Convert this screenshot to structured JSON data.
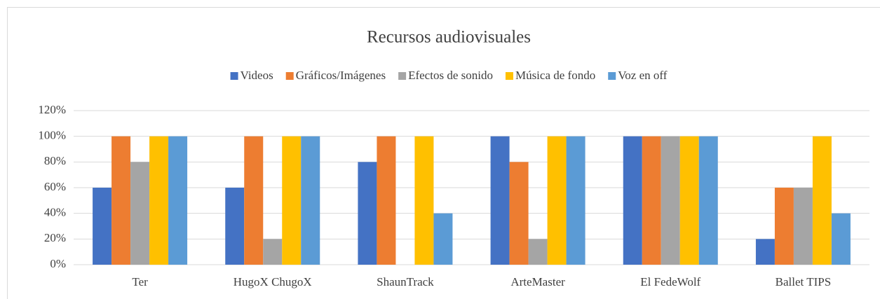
{
  "chart_data": {
    "type": "bar",
    "title": "Recursos audiovisuales",
    "categories": [
      "Ter",
      "HugoX ChugoX",
      "ShaunTrack",
      "ArteMaster",
      "El FedeWolf",
      "Ballet TIPS"
    ],
    "series": [
      {
        "name": "Videos",
        "color": "#4472c4",
        "values": [
          60,
          60,
          80,
          100,
          100,
          20
        ]
      },
      {
        "name": "Gráficos/Imágenes",
        "color": "#ed7d31",
        "values": [
          100,
          100,
          100,
          80,
          100,
          60
        ]
      },
      {
        "name": "Efectos de sonido",
        "color": "#a5a5a5",
        "values": [
          80,
          20,
          0,
          20,
          100,
          60
        ]
      },
      {
        "name": "Música de fondo",
        "color": "#ffc000",
        "values": [
          100,
          100,
          100,
          100,
          100,
          100
        ]
      },
      {
        "name": "Voz en off",
        "color": "#5b9bd5",
        "values": [
          100,
          100,
          40,
          100,
          100,
          40
        ]
      }
    ],
    "ylim": [
      0,
      120
    ],
    "yticks": [
      {
        "value": 0,
        "label": "0%"
      },
      {
        "value": 20,
        "label": "20%"
      },
      {
        "value": 40,
        "label": "40%"
      },
      {
        "value": 60,
        "label": "60%"
      },
      {
        "value": 80,
        "label": "80%"
      },
      {
        "value": 100,
        "label": "100%"
      },
      {
        "value": 120,
        "label": "120%"
      }
    ],
    "grid": true,
    "legend": "top"
  }
}
